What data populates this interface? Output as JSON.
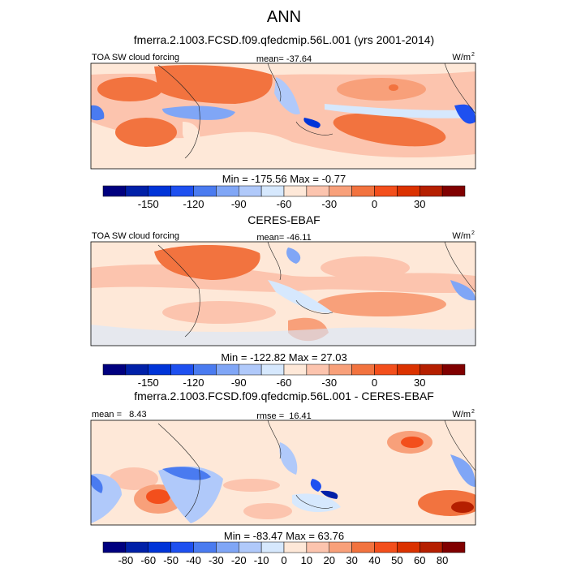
{
  "title": "ANN",
  "colors": [
    "#00007f",
    "#0020a8",
    "#0034d8",
    "#1e50f0",
    "#4a7bf0",
    "#80a6f6",
    "#b0c9fa",
    "#d6e8fd",
    "#fee8d8",
    "#fcc4ae",
    "#f8a07a",
    "#f2733f",
    "#f34f1c",
    "#db3200",
    "#b51f00",
    "#800000"
  ],
  "chart_data": [
    {
      "type": "heatmap",
      "title": "fmerra.2.1003.FCSD.f09.qfedcmip.56L.001 (yrs 2001-2014)",
      "left_label": "TOA SW cloud forcing",
      "center_label": "mean= -37.64",
      "units": "W/m",
      "units_sup": "2",
      "minmax": "Min = -175.56 Max =  -0.77",
      "levels": [
        -165,
        -150,
        -135,
        -120,
        -105,
        -90,
        -75,
        -60,
        -45,
        -30,
        -15,
        0,
        15,
        30,
        45
      ],
      "tick_labels": [
        "",
        "-150",
        "",
        "-120",
        "",
        "-90",
        "",
        "-60",
        "",
        "-30",
        "",
        "0",
        "",
        "30",
        ""
      ],
      "stats": {
        "mean": -37.64,
        "min": -175.56,
        "max": -0.77
      }
    },
    {
      "type": "heatmap",
      "title": "CERES-EBAF",
      "left_label": "TOA SW cloud forcing",
      "center_label": "mean= -46.11",
      "units": "W/m",
      "units_sup": "2",
      "minmax": "Min = -122.82 Max =  27.03",
      "levels": [
        -165,
        -150,
        -135,
        -120,
        -105,
        -90,
        -75,
        -60,
        -45,
        -30,
        -15,
        0,
        15,
        30,
        45
      ],
      "tick_labels": [
        "",
        "-150",
        "",
        "-120",
        "",
        "-90",
        "",
        "-60",
        "",
        "-30",
        "",
        "0",
        "",
        "30",
        ""
      ],
      "stats": {
        "mean": -46.11,
        "min": -122.82,
        "max": 27.03
      }
    },
    {
      "type": "heatmap",
      "title": "fmerra.2.1003.FCSD.f09.qfedcmip.56L.001 - CERES-EBAF",
      "left_label": "mean =   8.43",
      "center_label": "rmse =  16.41",
      "units": "W/m",
      "units_sup": "2",
      "minmax": "Min = -83.47 Max =  63.76",
      "levels": [
        -80,
        -60,
        -50,
        -40,
        -30,
        -20,
        -10,
        0,
        10,
        20,
        30,
        40,
        50,
        60,
        80
      ],
      "tick_labels": [
        "-80",
        "-60",
        "-50",
        "-40",
        "-30",
        "-20",
        "-10",
        "0",
        "10",
        "20",
        "30",
        "40",
        "50",
        "60",
        "80"
      ],
      "stats": {
        "mean": 8.43,
        "rmse": 16.41,
        "min": -83.47,
        "max": 63.76
      }
    }
  ]
}
